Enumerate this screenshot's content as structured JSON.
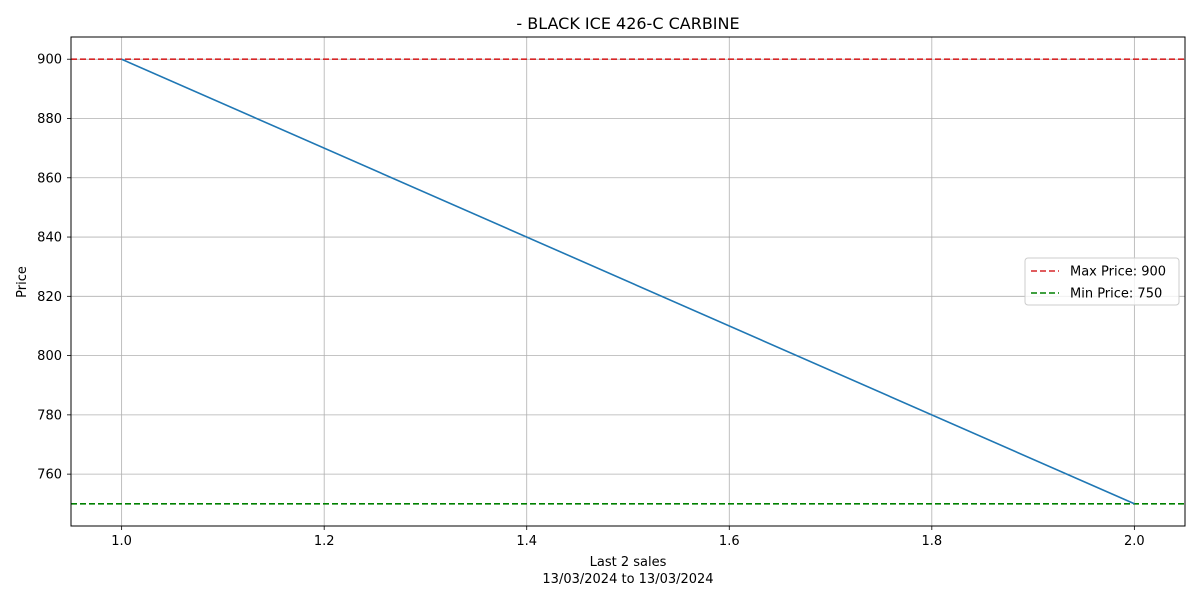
{
  "chart_data": {
    "type": "line",
    "title": "- BLACK ICE 426-C CARBINE",
    "xlabel": "Last 2 sales",
    "xlabel_sub": "13/03/2024 to 13/03/2024",
    "ylabel": "Price",
    "x": [
      1.0,
      2.0
    ],
    "series": [
      {
        "values": [
          900,
          750
        ],
        "color": "#1f77b4"
      }
    ],
    "reference_lines": [
      {
        "name": "Max Price: 900",
        "value": 900,
        "color": "#d62728",
        "style": "dashed"
      },
      {
        "name": "Min Price: 750",
        "value": 750,
        "color": "#008000",
        "style": "dashed"
      }
    ],
    "xlim": [
      0.95,
      2.05
    ],
    "ylim": [
      742.5,
      907.5
    ],
    "xticks": [
      1.0,
      1.2,
      1.4,
      1.6,
      1.8,
      2.0
    ],
    "xtick_labels": [
      "1.0",
      "1.2",
      "1.4",
      "1.6",
      "1.8",
      "2.0"
    ],
    "yticks": [
      760,
      780,
      800,
      820,
      840,
      860,
      880,
      900
    ],
    "ytick_labels": [
      "760",
      "780",
      "800",
      "820",
      "840",
      "860",
      "880",
      "900"
    ],
    "grid": true,
    "legend_position": "center-right"
  }
}
